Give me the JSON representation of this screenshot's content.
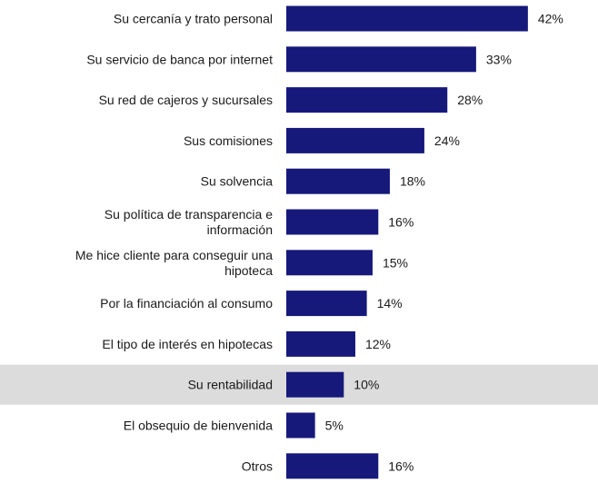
{
  "chart_data": {
    "type": "bar",
    "orientation": "horizontal",
    "categories": [
      "Su cercanía y trato personal",
      "Su servicio de banca por internet",
      "Su red de cajeros y sucursales",
      "Sus comisiones",
      "Su solvencia",
      "Su política de transparencia e información",
      "Me hice cliente para conseguir una hipoteca",
      "Por la financiación al consumo",
      "El tipo de interés en hipotecas",
      "Su rentabilidad",
      "El obsequio de bienvenida",
      "Otros"
    ],
    "values": [
      42,
      33,
      28,
      24,
      18,
      16,
      15,
      14,
      12,
      10,
      5,
      16
    ],
    "value_labels": [
      "42%",
      "33%",
      "28%",
      "24%",
      "18%",
      "16%",
      "15%",
      "14%",
      "12%",
      "10%",
      "5%",
      "16%"
    ],
    "highlighted_category": "Su rentabilidad",
    "title": "",
    "xlabel": "",
    "ylabel": "",
    "grid": false,
    "legend": "none"
  },
  "colors": {
    "bar": "#16197a",
    "highlight_band": "#dcdcdc",
    "text": "#1a1a1a",
    "background": "#ffffff"
  }
}
